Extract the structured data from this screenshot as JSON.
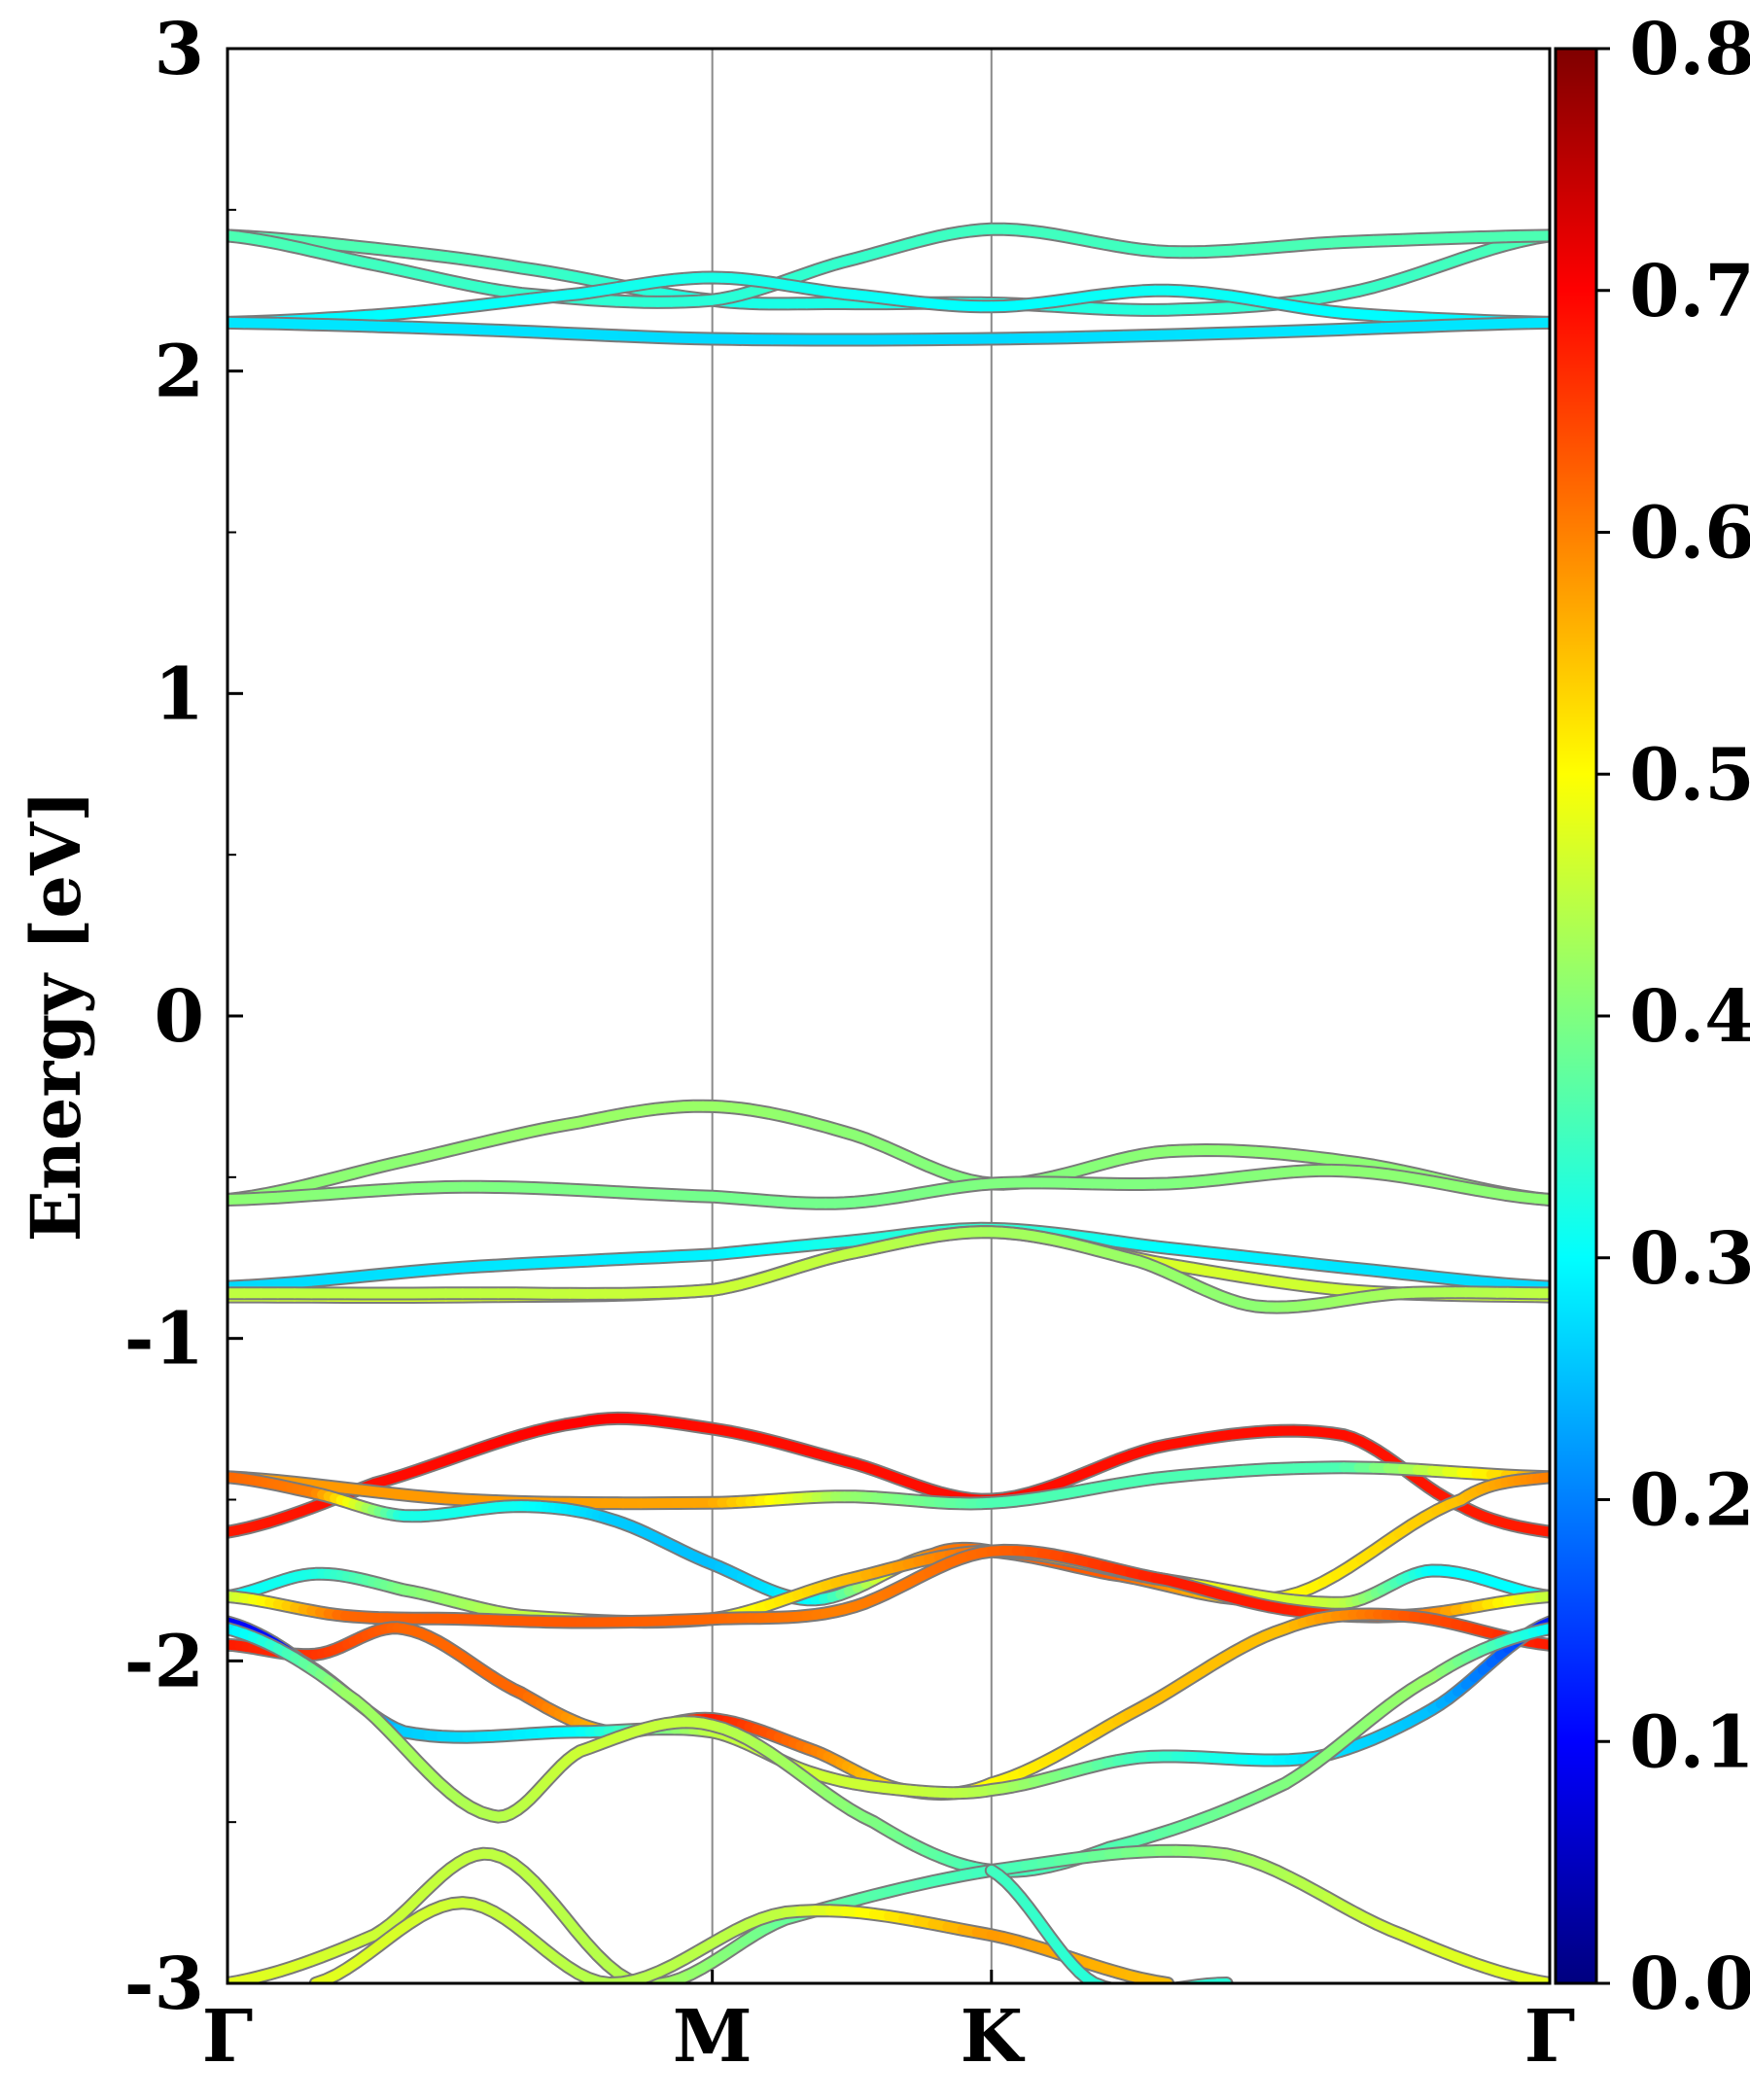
{
  "chart_data": {
    "type": "line",
    "title": "",
    "xlabel": "",
    "ylabel": "Energy [eV]",
    "ylim": [
      -3,
      3
    ],
    "xlim": [
      0,
      4.5
    ],
    "grid": false,
    "legend": "none",
    "y_ticks": [
      -3,
      -2,
      -1,
      0,
      1,
      2,
      3
    ],
    "y_tick_labels": [
      "-3",
      "-2",
      "-1",
      "0",
      "1",
      "2",
      "3"
    ],
    "x_ticks": [
      0,
      1.65,
      2.6,
      4.5
    ],
    "x_tick_labels": [
      "Γ",
      "M",
      "K",
      "Γ"
    ],
    "colorbar": {
      "range": [
        0.0,
        0.8
      ],
      "ticks": [
        0.0,
        0.1,
        0.2,
        0.3,
        0.4,
        0.5,
        0.6,
        0.7,
        0.8
      ],
      "tick_labels": [
        "0.0",
        "0.1",
        "0.2",
        "0.3",
        "0.4",
        "0.5",
        "0.6",
        "0.7",
        "0.8"
      ],
      "colormap": "jet"
    },
    "series": [
      {
        "x": [
          0,
          0.5,
          1.0,
          1.65,
          2.1,
          2.6,
          3.2,
          3.8,
          4.5
        ],
        "y": [
          2.42,
          2.38,
          2.32,
          2.22,
          2.21,
          2.21,
          2.19,
          2.24,
          2.42
        ],
        "values": [
          0.36,
          0.36,
          0.35,
          0.32,
          0.32,
          0.32,
          0.33,
          0.34,
          0.36
        ]
      },
      {
        "x": [
          0,
          0.5,
          1.0,
          1.65,
          2.1,
          2.6,
          3.2,
          3.8,
          4.5
        ],
        "y": [
          2.42,
          2.33,
          2.24,
          2.22,
          2.34,
          2.44,
          2.37,
          2.4,
          2.42
        ],
        "values": [
          0.36,
          0.35,
          0.34,
          0.33,
          0.34,
          0.35,
          0.35,
          0.36,
          0.36
        ]
      },
      {
        "x": [
          0,
          0.6,
          1.2,
          1.65,
          2.1,
          2.6,
          3.2,
          3.8,
          4.5
        ],
        "y": [
          2.15,
          2.18,
          2.24,
          2.29,
          2.24,
          2.2,
          2.25,
          2.18,
          2.15
        ],
        "values": [
          0.29,
          0.3,
          0.31,
          0.32,
          0.31,
          0.3,
          0.31,
          0.3,
          0.29
        ]
      },
      {
        "x": [
          0,
          0.8,
          1.65,
          2.6,
          3.5,
          4.5
        ],
        "y": [
          2.15,
          2.13,
          2.1,
          2.1,
          2.12,
          2.15
        ],
        "values": [
          0.28,
          0.28,
          0.27,
          0.27,
          0.28,
          0.28
        ]
      },
      {
        "x": [
          0,
          0.6,
          1.2,
          1.65,
          2.1,
          2.6,
          3.2,
          3.8,
          4.5
        ],
        "y": [
          -0.57,
          -0.45,
          -0.33,
          -0.28,
          -0.36,
          -0.52,
          -0.42,
          -0.45,
          -0.57
        ],
        "values": [
          0.41,
          0.41,
          0.42,
          0.42,
          0.41,
          0.4,
          0.41,
          0.41,
          0.41
        ]
      },
      {
        "x": [
          0,
          0.8,
          1.65,
          2.1,
          2.6,
          3.2,
          3.8,
          4.5
        ],
        "y": [
          -0.57,
          -0.53,
          -0.56,
          -0.58,
          -0.52,
          -0.52,
          -0.48,
          -0.57
        ],
        "values": [
          0.41,
          0.4,
          0.39,
          0.39,
          0.4,
          0.4,
          0.41,
          0.41
        ]
      },
      {
        "x": [
          0,
          0.8,
          1.65,
          2.1,
          2.6,
          3.2,
          3.8,
          4.5
        ],
        "y": [
          -0.84,
          -0.78,
          -0.74,
          -0.7,
          -0.66,
          -0.72,
          -0.78,
          -0.84
        ],
        "values": [
          0.27,
          0.28,
          0.29,
          0.32,
          0.34,
          0.3,
          0.28,
          0.27
        ]
      },
      {
        "x": [
          0,
          0.8,
          1.65,
          2.1,
          2.6,
          3.2,
          3.8,
          4.5
        ],
        "y": [
          -0.87,
          -0.87,
          -0.85,
          -0.74,
          -0.67,
          -0.77,
          -0.85,
          -0.87
        ],
        "values": [
          0.46,
          0.47,
          0.48,
          0.5,
          0.46,
          0.47,
          0.46,
          0.46
        ]
      },
      {
        "x": [
          0,
          0.8,
          1.65,
          2.1,
          2.6,
          3.1,
          3.5,
          4.0,
          4.5
        ],
        "y": [
          -0.86,
          -0.86,
          -0.85,
          -0.74,
          -0.67,
          -0.76,
          -0.9,
          -0.86,
          -0.86
        ],
        "values": [
          0.45,
          0.45,
          0.46,
          0.45,
          0.43,
          0.42,
          0.41,
          0.43,
          0.45
        ]
      },
      {
        "x": [
          0,
          0.5,
          1.2,
          1.65,
          2.1,
          2.6,
          3.2,
          3.8,
          4.2,
          4.5
        ],
        "y": [
          -1.6,
          -1.45,
          -1.26,
          -1.28,
          -1.38,
          -1.5,
          -1.33,
          -1.3,
          -1.52,
          -1.6
        ],
        "values": [
          0.68,
          0.69,
          0.7,
          0.69,
          0.69,
          0.69,
          0.69,
          0.69,
          0.68,
          0.68
        ]
      },
      {
        "x": [
          0,
          0.8,
          1.65,
          2.1,
          2.6,
          3.2,
          3.8,
          4.5
        ],
        "y": [
          -1.43,
          -1.5,
          -1.51,
          -1.49,
          -1.51,
          -1.43,
          -1.4,
          -1.43
        ],
        "values": [
          0.58,
          0.58,
          0.57,
          0.42,
          0.36,
          0.36,
          0.36,
          0.58
        ]
      },
      {
        "x": [
          0,
          0.3,
          0.6,
          1.0,
          1.3,
          1.65,
          2.0,
          2.4,
          2.6,
          3.0,
          3.6,
          4.2,
          4.5
        ],
        "y": [
          -1.43,
          -1.48,
          -1.55,
          -1.52,
          -1.56,
          -1.7,
          -1.81,
          -1.67,
          -1.66,
          -1.73,
          -1.8,
          -1.5,
          -1.43
        ],
        "values": [
          0.62,
          0.6,
          0.32,
          0.31,
          0.26,
          0.25,
          0.3,
          0.6,
          0.62,
          0.63,
          0.5,
          0.55,
          0.6
        ]
      },
      {
        "x": [
          0,
          0.3,
          0.6,
          1.0,
          1.65,
          2.1,
          2.6,
          3.2,
          3.8,
          4.1,
          4.5
        ],
        "y": [
          -1.8,
          -1.73,
          -1.78,
          -1.86,
          -1.87,
          -1.75,
          -1.66,
          -1.75,
          -1.82,
          -1.72,
          -1.8
        ],
        "values": [
          0.3,
          0.32,
          0.4,
          0.45,
          0.48,
          0.55,
          0.62,
          0.5,
          0.45,
          0.3,
          0.3
        ]
      },
      {
        "x": [
          0,
          0.4,
          0.8,
          1.2,
          1.65,
          2.1,
          2.6,
          3.2,
          3.6,
          4.0,
          4.5
        ],
        "y": [
          -1.8,
          -1.86,
          -1.87,
          -1.88,
          -1.87,
          -1.84,
          -1.66,
          -1.75,
          -1.84,
          -1.86,
          -1.8
        ],
        "values": [
          0.45,
          0.62,
          0.63,
          0.63,
          0.62,
          0.6,
          0.62,
          0.68,
          0.68,
          0.63,
          0.45
        ]
      },
      {
        "x": [
          0,
          0.3,
          0.6,
          1.0,
          1.3,
          1.65,
          2.0,
          2.3,
          2.6,
          3.1,
          3.6,
          4.0,
          4.5
        ],
        "y": [
          -1.95,
          -1.98,
          -1.9,
          -2.1,
          -2.22,
          -2.18,
          -2.28,
          -2.4,
          -2.38,
          -2.15,
          -1.9,
          -1.86,
          -1.95
        ],
        "values": [
          0.68,
          0.66,
          0.62,
          0.62,
          0.55,
          0.68,
          0.6,
          0.52,
          0.5,
          0.55,
          0.55,
          0.63,
          0.68
        ]
      },
      {
        "x": [
          0,
          0.25,
          0.6,
          1.2,
          1.65,
          2.0,
          2.3,
          2.6,
          3.1,
          3.7,
          4.1,
          4.5
        ],
        "y": [
          -1.88,
          -2.0,
          -2.22,
          -2.22,
          -2.22,
          -2.35,
          -2.4,
          -2.4,
          -2.3,
          -2.3,
          -2.15,
          -1.88
        ],
        "values": [
          0.1,
          0.12,
          0.26,
          0.3,
          0.45,
          0.46,
          0.46,
          0.44,
          0.35,
          0.28,
          0.25,
          0.12
        ]
      },
      {
        "x": [
          0,
          0.4,
          0.9,
          1.2,
          1.65,
          2.2,
          2.6,
          3.0,
          3.6,
          4.1,
          4.5
        ],
        "y": [
          -1.9,
          -2.1,
          -2.48,
          -2.28,
          -2.2,
          -2.5,
          -2.65,
          -2.58,
          -2.38,
          -2.05,
          -1.9
        ],
        "values": [
          0.28,
          0.42,
          0.44,
          0.46,
          0.45,
          0.4,
          0.35,
          0.36,
          0.4,
          0.42,
          0.3
        ]
      },
      {
        "x": [
          0,
          0.5,
          0.9,
          1.4,
          1.9,
          2.6,
          3.4,
          4.0,
          4.5
        ],
        "y": [
          -3.0,
          -2.85,
          -2.6,
          -3.0,
          -2.8,
          -2.65,
          -2.6,
          -2.85,
          -3.0
        ],
        "values": [
          0.48,
          0.46,
          0.45,
          0.44,
          0.38,
          0.35,
          0.42,
          0.47,
          0.48
        ]
      },
      {
        "x": [
          0.3,
          0.8,
          1.3,
          1.9,
          2.6,
          3.2
        ],
        "y": [
          -3.0,
          -2.75,
          -3.0,
          -2.78,
          -2.85,
          -3.0
        ],
        "values": [
          0.48,
          0.46,
          0.44,
          0.45,
          0.58,
          0.55
        ]
      },
      {
        "x": [
          2.6,
          2.95,
          3.4
        ],
        "y": [
          -2.65,
          -3.0,
          -3.0
        ],
        "values": [
          0.35,
          0.33,
          0.33
        ]
      }
    ]
  }
}
